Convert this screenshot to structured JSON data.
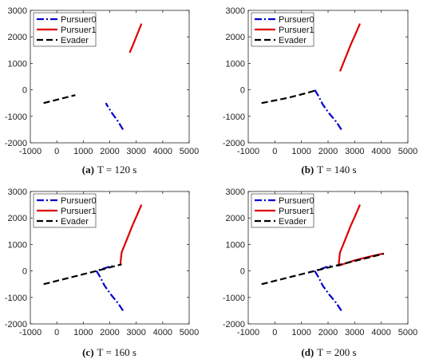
{
  "colors": {
    "pursuer0": "#0000cc",
    "pursuer1": "#dd0000",
    "evader": "#000000",
    "axis": "#262626",
    "grid": "#e6e6e6"
  },
  "chart_data": [
    {
      "type": "line",
      "caption_letter": "(a)",
      "caption_text": "T = 120 s",
      "xlim": [
        -1000,
        5000
      ],
      "ylim": [
        -2000,
        3000
      ],
      "xticks": [
        -1000,
        0,
        1000,
        2000,
        3000,
        4000,
        5000
      ],
      "yticks": [
        -2000,
        -1000,
        0,
        1000,
        2000,
        3000
      ],
      "xtick_labels": [
        "-1000",
        "0",
        "1000",
        "2000",
        "3000",
        "4000",
        "5000"
      ],
      "ytick_labels": [
        "-2000",
        "-1000",
        "0",
        "1000",
        "2000",
        "3000"
      ],
      "grid": false,
      "legend_position": "top-left",
      "series": [
        {
          "name": "Pursuer0",
          "style": "dash-dot",
          "x": [
            2500,
            2380,
            2250,
            2100,
            1850
          ],
          "y": [
            -1500,
            -1300,
            -1100,
            -900,
            -500
          ]
        },
        {
          "name": "Pursuer1",
          "style": "solid",
          "x": [
            3200,
            3100,
            2980,
            2880,
            2750
          ],
          "y": [
            2500,
            2250,
            1950,
            1700,
            1400
          ]
        },
        {
          "name": "Evader",
          "style": "dashed",
          "x": [
            -500,
            100,
            700
          ],
          "y": [
            -500,
            -350,
            -200
          ]
        }
      ]
    },
    {
      "type": "line",
      "caption_letter": "(b)",
      "caption_text": "T = 140 s",
      "xlim": [
        -1000,
        5000
      ],
      "ylim": [
        -2000,
        3000
      ],
      "xticks": [
        -1000,
        0,
        1000,
        2000,
        3000,
        4000,
        5000
      ],
      "yticks": [
        -2000,
        -1000,
        0,
        1000,
        2000,
        3000
      ],
      "xtick_labels": [
        "-1000",
        "0",
        "1000",
        "2000",
        "3000",
        "4000",
        "5000"
      ],
      "ytick_labels": [
        "-2000",
        "-1000",
        "0",
        "1000",
        "2000",
        "3000"
      ],
      "grid": false,
      "legend_position": "top-left",
      "series": [
        {
          "name": "Pursuer0",
          "style": "dash-dot",
          "x": [
            2500,
            2300,
            2050,
            1800,
            1650,
            1500
          ],
          "y": [
            -1500,
            -1200,
            -900,
            -550,
            -250,
            0
          ]
        },
        {
          "name": "Pursuer1",
          "style": "solid",
          "x": [
            3200,
            3050,
            2850,
            2650,
            2450
          ],
          "y": [
            2500,
            2150,
            1700,
            1200,
            700
          ]
        },
        {
          "name": "Evader",
          "style": "dashed",
          "x": [
            -500,
            500,
            1200,
            1600
          ],
          "y": [
            -500,
            -300,
            -120,
            0
          ]
        }
      ]
    },
    {
      "type": "line",
      "caption_letter": "(c)",
      "caption_text": "T = 160 s",
      "xlim": [
        -1000,
        5000
      ],
      "ylim": [
        -2000,
        3000
      ],
      "xticks": [
        -1000,
        0,
        1000,
        2000,
        3000,
        4000,
        5000
      ],
      "yticks": [
        -2000,
        -1000,
        0,
        1000,
        2000,
        3000
      ],
      "xtick_labels": [
        "-1000",
        "0",
        "1000",
        "2000",
        "3000",
        "4000",
        "5000"
      ],
      "ytick_labels": [
        "-2000",
        "-1000",
        "0",
        "1000",
        "2000",
        "3000"
      ],
      "grid": false,
      "legend_position": "top-left",
      "series": [
        {
          "name": "Pursuer0",
          "style": "dash-dot",
          "x": [
            2500,
            2300,
            2050,
            1800,
            1650,
            1500,
            1800,
            2100
          ],
          "y": [
            -1500,
            -1200,
            -900,
            -550,
            -250,
            0,
            100,
            200
          ]
        },
        {
          "name": "Pursuer1",
          "style": "solid",
          "x": [
            3200,
            3050,
            2850,
            2650,
            2450,
            2420,
            2400
          ],
          "y": [
            2500,
            2150,
            1700,
            1200,
            700,
            450,
            200
          ]
        },
        {
          "name": "Evader",
          "style": "dashed",
          "x": [
            -500,
            500,
            1500,
            2450
          ],
          "y": [
            -500,
            -250,
            0,
            250
          ]
        }
      ]
    },
    {
      "type": "line",
      "caption_letter": "(d)",
      "caption_text": "T = 200 s",
      "xlim": [
        -1000,
        5000
      ],
      "ylim": [
        -2000,
        3000
      ],
      "xticks": [
        -1000,
        0,
        1000,
        2000,
        3000,
        4000,
        5000
      ],
      "yticks": [
        -2000,
        -1000,
        0,
        1000,
        2000,
        3000
      ],
      "xtick_labels": [
        "-1000",
        "0",
        "1000",
        "2000",
        "3000",
        "4000",
        "5000"
      ],
      "ytick_labels": [
        "-2000",
        "-1000",
        "0",
        "1000",
        "2000",
        "3000"
      ],
      "grid": false,
      "legend_position": "top-left",
      "series": [
        {
          "name": "Pursuer0",
          "style": "dash-dot",
          "x": [
            2500,
            2300,
            2050,
            1800,
            1650,
            1500,
            1800,
            2100
          ],
          "y": [
            -1500,
            -1200,
            -900,
            -550,
            -250,
            0,
            100,
            200
          ]
        },
        {
          "name": "Pursuer1",
          "style": "solid",
          "x": [
            3200,
            3050,
            2850,
            2650,
            2450,
            2420,
            2400,
            3000,
            3600,
            4050
          ],
          "y": [
            2500,
            2150,
            1700,
            1200,
            700,
            450,
            200,
            400,
            550,
            650
          ]
        },
        {
          "name": "Evader",
          "style": "dashed",
          "x": [
            -500,
            500,
            1500,
            2500,
            3300,
            4100
          ],
          "y": [
            -500,
            -250,
            0,
            250,
            450,
            650
          ]
        }
      ]
    }
  ]
}
